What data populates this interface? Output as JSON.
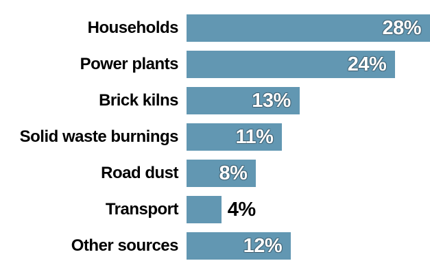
{
  "chart_data": {
    "type": "bar",
    "orientation": "horizontal",
    "title": "",
    "xlabel": "",
    "ylabel": "",
    "categories": [
      "Households",
      "Power plants",
      "Brick kilns",
      "Solid waste burnings",
      "Road dust",
      "Transport",
      "Other sources"
    ],
    "values": [
      28,
      24,
      13,
      11,
      8,
      4,
      12
    ],
    "value_labels": [
      "28%",
      "24%",
      "13%",
      "11%",
      "8%",
      "4%",
      "12%"
    ],
    "value_label_position": [
      "inside",
      "inside",
      "inside",
      "inside",
      "inside",
      "outside",
      "inside"
    ],
    "xlim": [
      0,
      28
    ],
    "grid": false,
    "legend": false,
    "bar_color": "#6297b2",
    "category_label_color": "#000000",
    "value_label_color_inside": "#ffffff",
    "value_label_color_outside": "#000000",
    "background_color": "#ffffff"
  }
}
